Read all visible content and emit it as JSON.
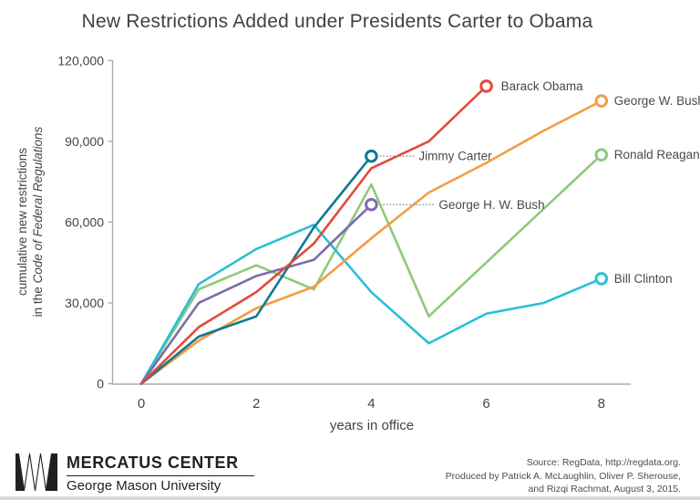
{
  "title": "New Restrictions Added under Presidents Carter to Obama",
  "chart_data": {
    "type": "line",
    "title": "New Restrictions Added under Presidents Carter to Obama",
    "xlabel": "years in office",
    "ylabel": "cumulative new restrictions in the Code of Federal Regulations",
    "ylabel_lines": {
      "line1": "cumulative new restrictions",
      "line2_prefix": "in the ",
      "line2_italic": "Code of Federal Regulations"
    },
    "xlim": [
      0,
      8.5
    ],
    "ylim": [
      0,
      120000
    ],
    "x_tick_values": [
      0,
      2,
      4,
      6,
      8
    ],
    "x_ticks": [
      "0",
      "2",
      "4",
      "6",
      "8"
    ],
    "y_tick_values": [
      0,
      30000,
      60000,
      90000,
      120000
    ],
    "y_ticks": [
      "0",
      "30,000",
      "60,000",
      "90,000",
      "120,000"
    ],
    "grid": false,
    "legend_position": "end-of-line labels",
    "series": [
      {
        "name": "Ronald Reagan",
        "color": "#8fc97d",
        "label_style": "right",
        "label_dx": 14,
        "years": [
          0,
          1,
          2,
          3,
          4,
          5,
          6,
          7,
          8
        ],
        "values": [
          0,
          35000,
          44000,
          35000,
          74000,
          25000,
          45000,
          65000,
          85000
        ]
      },
      {
        "name": "Bill Clinton",
        "color": "#29bfd6",
        "label_style": "right",
        "label_dx": 14,
        "years": [
          0,
          1,
          2,
          3,
          4,
          5,
          6,
          7,
          8
        ],
        "values": [
          0,
          37000,
          50000,
          59000,
          34000,
          15000,
          26000,
          30000,
          39000
        ]
      },
      {
        "name": "George W. Bush",
        "color": "#f59c42",
        "label_style": "right",
        "label_dx": 14,
        "years": [
          0,
          1,
          2,
          3,
          4,
          5,
          6,
          7,
          8
        ],
        "values": [
          0,
          16000,
          28000,
          36000,
          54000,
          71000,
          82000,
          94000,
          105000
        ]
      },
      {
        "name": "George H. W. Bush",
        "color": "#7a6daa",
        "label_style": "leader",
        "label_dx": 74,
        "years": [
          0,
          1,
          2,
          3,
          4
        ],
        "values": [
          0,
          30000,
          40000,
          46000,
          66500
        ]
      },
      {
        "name": "Jimmy Carter",
        "color": "#0e7a8e",
        "label_style": "leader",
        "label_dx": 52,
        "years": [
          0,
          1,
          2,
          3,
          4
        ],
        "values": [
          0,
          17500,
          25000,
          58000,
          84500
        ]
      },
      {
        "name": "Barack Obama",
        "color": "#e24b3b",
        "label_style": "right",
        "label_dx": 16,
        "years": [
          0,
          1,
          2,
          3,
          4,
          5,
          6
        ],
        "values": [
          0,
          21000,
          34000,
          52000,
          80000,
          90000,
          110500
        ]
      }
    ]
  },
  "footer": {
    "logo": {
      "icon": "mercatus-mm-mark",
      "org": "MERCATUS CENTER",
      "suborg": "George Mason University"
    },
    "source_lines": [
      "Source: RegData, http://regdata.org.",
      "Produced by Patrick A. McLaughlin, Oliver P. Sherouse,",
      "and Rizqi Rachmat, August 3, 2015."
    ]
  },
  "colors": {
    "axis": "#ababab",
    "tick_text": "#454545",
    "label_text": "#4a4a4a",
    "leader_dots": "#9a9a9a",
    "title_text": "#414141",
    "logo_ink": "#231f20"
  }
}
